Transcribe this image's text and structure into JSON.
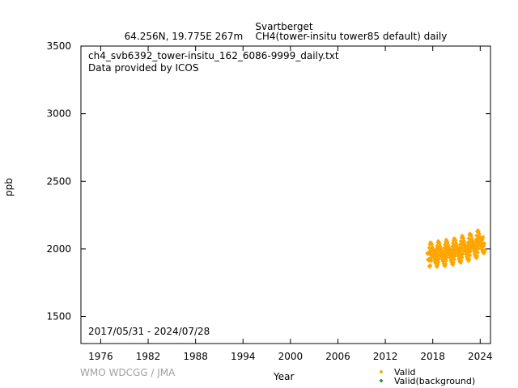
{
  "header": {
    "station": "Svartberget",
    "location": "64.256N, 19.775E 267m",
    "series_desc": "CH4(tower-insitu tower85 default) daily"
  },
  "plot": {
    "file_name": "ch4_svb6392_tower-insitu_162_6086-9999_daily.txt",
    "provider": "Data provided by ICOS",
    "date_range": "2017/05/31 - 2024/07/28",
    "credit": "WMO WDCGG / JMA"
  },
  "colors": {
    "valid": "#ffa500",
    "background": "#2e8b57",
    "credit": "#a0a0a0"
  },
  "chart_data": {
    "type": "scatter",
    "xlabel": "Year",
    "ylabel": "ppb",
    "xlim": [
      1973.5,
      2025.3
    ],
    "ylim": [
      1300,
      3500
    ],
    "xticks": [
      1976,
      1982,
      1988,
      1994,
      2000,
      2006,
      2012,
      2018,
      2024
    ],
    "xtick_labels": [
      "1976",
      "1982",
      "1988",
      "1994",
      "2000",
      "2006",
      "2012",
      "2018",
      "2024"
    ],
    "yticks": [
      1500,
      2000,
      2500,
      3000,
      3500
    ],
    "ytick_labels": [
      "1500",
      "2000",
      "2500",
      "3000",
      "3500"
    ],
    "legend": [
      "Valid",
      "Valid(background)"
    ],
    "legend_position": "bottom-right, outside plot",
    "series": [
      {
        "name": "Valid",
        "color": "#ffa500",
        "x": [
          2017.42,
          2017.5,
          2017.58,
          2017.67,
          2017.75,
          2017.83,
          2017.92,
          2018.0,
          2018.08,
          2018.17,
          2018.25,
          2018.33,
          2018.42,
          2018.5,
          2018.58,
          2018.67,
          2018.75,
          2018.83,
          2018.92,
          2019.0,
          2019.08,
          2019.17,
          2019.25,
          2019.33,
          2019.42,
          2019.5,
          2019.58,
          2019.67,
          2019.75,
          2019.83,
          2019.92,
          2020.0,
          2020.08,
          2020.17,
          2020.25,
          2020.33,
          2020.42,
          2020.5,
          2020.58,
          2020.67,
          2020.75,
          2020.83,
          2020.92,
          2021.0,
          2021.08,
          2021.17,
          2021.25,
          2021.33,
          2021.42,
          2021.5,
          2021.58,
          2021.67,
          2021.75,
          2021.83,
          2021.92,
          2022.0,
          2022.08,
          2022.17,
          2022.25,
          2022.33,
          2022.42,
          2022.5,
          2022.58,
          2022.67,
          2022.75,
          2022.83,
          2022.92,
          2023.0,
          2023.08,
          2023.17,
          2023.25,
          2023.33,
          2023.42,
          2023.5,
          2023.58,
          2023.67,
          2023.75,
          2023.83,
          2023.92,
          2024.0,
          2024.08,
          2024.17,
          2024.25,
          2024.33,
          2024.42,
          2024.5
        ],
        "y": [
          1920,
          1915,
          1925,
          1960,
          1985,
          2000,
          1995,
          1985,
          1965,
          1950,
          1940,
          1920,
          1915,
          1930,
          1950,
          1975,
          2000,
          2010,
          2000,
          1990,
          1970,
          1955,
          1940,
          1925,
          1920,
          1935,
          1960,
          1985,
          2005,
          2020,
          2010,
          2000,
          1980,
          1960,
          1950,
          1935,
          1930,
          1945,
          1970,
          1995,
          2015,
          2030,
          2025,
          2015,
          1995,
          1975,
          1960,
          1950,
          1945,
          1960,
          1985,
          2010,
          2035,
          2050,
          2040,
          2030,
          2010,
          1990,
          1975,
          1965,
          1960,
          1975,
          2000,
          2030,
          2055,
          2065,
          2060,
          2050,
          2030,
          2010,
          1995,
          1985,
          1980,
          1995,
          2020,
          2050,
          2080,
          2090,
          2080,
          2065,
          2045,
          2030,
          2020,
          2015,
          2025,
          2040
        ]
      },
      {
        "name": "Valid(background)",
        "color": "#2e8b57",
        "x": [],
        "y": []
      }
    ]
  }
}
